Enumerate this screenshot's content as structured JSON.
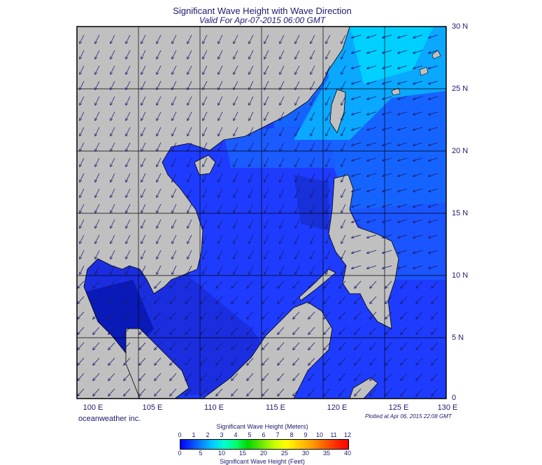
{
  "header": {
    "title": "Significant Wave Height with Wave Direction",
    "subtitle": "Valid For Apr-07-2015 06:00 GMT"
  },
  "map": {
    "lat_labels": [
      "30 N",
      "25 N",
      "20 N",
      "15 N",
      "10 N",
      "5 N",
      "0"
    ],
    "lon_labels": [
      "100 E",
      "105 E",
      "110 E",
      "115 E",
      "120 E",
      "125 E",
      "130 E"
    ],
    "extent": {
      "lon_min": 100,
      "lon_max": 130,
      "lat_min": 0,
      "lat_max": 30
    },
    "land_color": "#c0c0c0",
    "sea_base_color": "#1e3cff",
    "arrow_color": "#1a1a6e"
  },
  "footer": {
    "credit": "oceanweather inc.",
    "plotted": "Plotted at Apr 06, 2015 22:08 GMT"
  },
  "colorbar": {
    "label_top": "Significant Wave Height (Meters)",
    "label_bottom": "Significant Wave Height (Feet)",
    "meters_ticks": [
      "0",
      "1",
      "2",
      "3",
      "4",
      "5",
      "6",
      "7",
      "8",
      "9",
      "10",
      "11",
      "12"
    ],
    "feet_ticks": [
      "0",
      "5",
      "10",
      "15",
      "20",
      "25",
      "30",
      "35",
      "40"
    ]
  }
}
